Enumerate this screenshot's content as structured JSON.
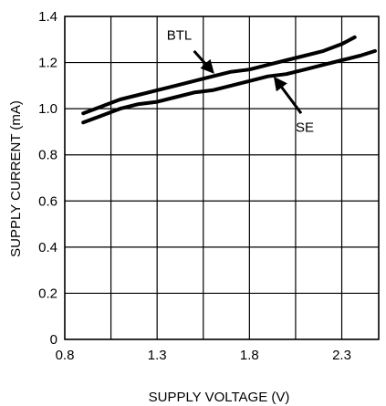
{
  "chart_data": {
    "type": "line",
    "xlabel": "SUPPLY VOLTAGE (V)",
    "ylabel": "SUPPLY CURRENT (mA)",
    "xlim": [
      0.8,
      2.5
    ],
    "ylim": [
      0,
      1.4
    ],
    "x_ticks": [
      0.8,
      1.3,
      1.8,
      2.3
    ],
    "x_tick_labels": [
      "0.8",
      "1.3",
      "1.8",
      "2.3"
    ],
    "x_grid": [
      0.8,
      1.05,
      1.3,
      1.55,
      1.8,
      2.05,
      2.3,
      2.5
    ],
    "y_ticks": [
      0,
      0.2,
      0.4,
      0.6,
      0.8,
      1.0,
      1.2,
      1.4
    ],
    "y_tick_labels": [
      "0",
      "0.2",
      "0.4",
      "0.6",
      "0.8",
      "1.0",
      "1.2",
      "1.4"
    ],
    "grid": true,
    "series": [
      {
        "name": "BTL",
        "x": [
          0.9,
          1.0,
          1.1,
          1.2,
          1.3,
          1.4,
          1.5,
          1.6,
          1.7,
          1.8,
          1.9,
          2.0,
          2.1,
          2.2,
          2.3,
          2.37
        ],
        "y": [
          0.98,
          1.01,
          1.04,
          1.06,
          1.08,
          1.1,
          1.12,
          1.14,
          1.16,
          1.17,
          1.19,
          1.21,
          1.23,
          1.25,
          1.28,
          1.31
        ]
      },
      {
        "name": "SE",
        "x": [
          0.9,
          1.0,
          1.1,
          1.2,
          1.3,
          1.4,
          1.5,
          1.6,
          1.7,
          1.8,
          1.9,
          2.0,
          2.1,
          2.2,
          2.3,
          2.4,
          2.48
        ],
        "y": [
          0.94,
          0.97,
          1.0,
          1.02,
          1.03,
          1.05,
          1.07,
          1.08,
          1.1,
          1.12,
          1.14,
          1.15,
          1.17,
          1.19,
          1.21,
          1.23,
          1.25
        ]
      }
    ],
    "annotations": [
      {
        "text": "BTL",
        "series": "BTL",
        "label_at": [
          1.42,
          1.3
        ],
        "arrow_from": [
          1.5,
          1.25
        ],
        "arrow_to": [
          1.6,
          1.16
        ]
      },
      {
        "text": "SE",
        "series": "SE",
        "label_at": [
          2.1,
          0.9
        ],
        "arrow_from": [
          2.08,
          0.98
        ],
        "arrow_to": [
          1.94,
          1.13
        ]
      }
    ]
  }
}
